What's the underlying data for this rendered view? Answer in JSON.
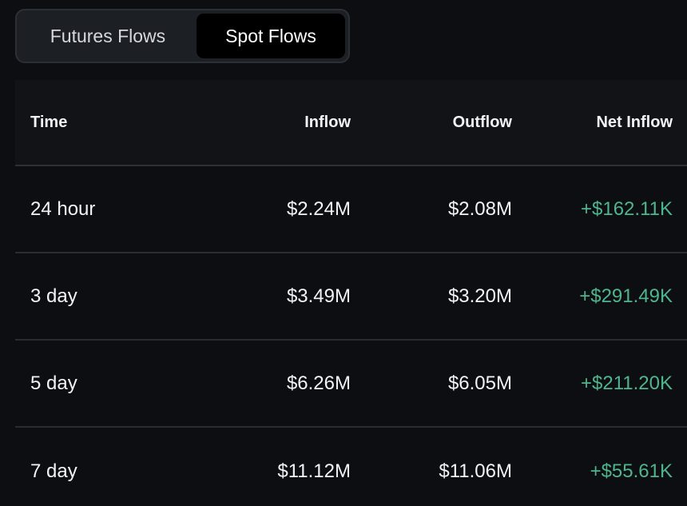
{
  "tabs": {
    "futures_label": "Futures Flows",
    "spot_label": "Spot Flows",
    "active": "Spot Flows"
  },
  "table": {
    "headers": {
      "time": "Time",
      "inflow": "Inflow",
      "outflow": "Outflow",
      "net_inflow": "Net Inflow"
    },
    "rows": [
      {
        "time": "24 hour",
        "inflow": "$2.24M",
        "outflow": "$2.08M",
        "net_inflow": "+$162.11K"
      },
      {
        "time": "3 day",
        "inflow": "$3.49M",
        "outflow": "$3.20M",
        "net_inflow": "+$291.49K"
      },
      {
        "time": "5 day",
        "inflow": "$6.26M",
        "outflow": "$6.05M",
        "net_inflow": "+$211.20K"
      },
      {
        "time": "7 day",
        "inflow": "$11.12M",
        "outflow": "$11.06M",
        "net_inflow": "+$55.61K"
      }
    ]
  },
  "colors": {
    "background": "#0d0e11",
    "positive": "#4fb58d",
    "active_tab": "#000000"
  }
}
